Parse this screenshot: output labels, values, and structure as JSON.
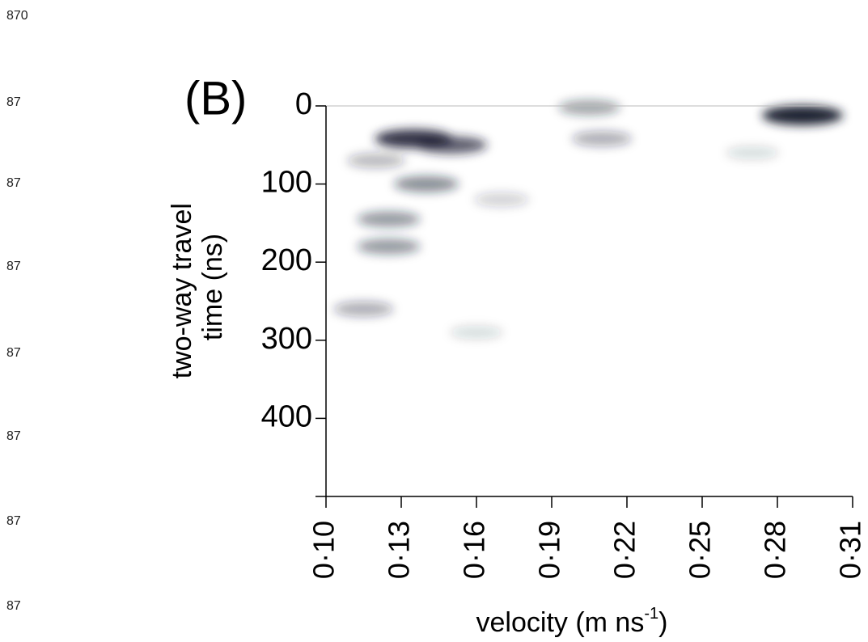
{
  "line_numbers": [
    "870",
    "87",
    "87",
    "87",
    "87",
    "87",
    "87",
    "87"
  ],
  "chart_data": {
    "type": "heatmap",
    "panel_label": "(B)",
    "ylabel": [
      "two-way travel",
      "time (ns)"
    ],
    "xlabel": "velocity (m ns",
    "xlabel_superscript": "-1",
    "xlabel_end": ")",
    "xlim": [
      0.1,
      0.31
    ],
    "ylim": [
      500,
      0
    ],
    "xticks": [
      {
        "value": 0.1,
        "label": "0·10"
      },
      {
        "value": 0.13,
        "label": "0·13"
      },
      {
        "value": 0.16,
        "label": "0·16"
      },
      {
        "value": 0.19,
        "label": "0·19"
      },
      {
        "value": 0.22,
        "label": "0·22"
      },
      {
        "value": 0.25,
        "label": "0·25"
      },
      {
        "value": 0.28,
        "label": "0·28"
      },
      {
        "value": 0.31,
        "label": "0·31"
      }
    ],
    "yticks": [
      0,
      100,
      200,
      300,
      400
    ],
    "color": "#1c2033",
    "x": [
      0.29,
      0.135,
      0.15,
      0.14,
      0.125,
      0.125,
      0.115,
      0.21,
      0.12,
      0.205,
      0.17,
      0.27,
      0.16
    ],
    "y": [
      12,
      42,
      50,
      100,
      145,
      180,
      260,
      42,
      70,
      2,
      120,
      60,
      290
    ],
    "values": [
      1.0,
      0.9,
      0.7,
      0.5,
      0.45,
      0.45,
      0.35,
      0.35,
      0.3,
      0.4,
      0.2,
      0.15,
      0.15
    ]
  }
}
